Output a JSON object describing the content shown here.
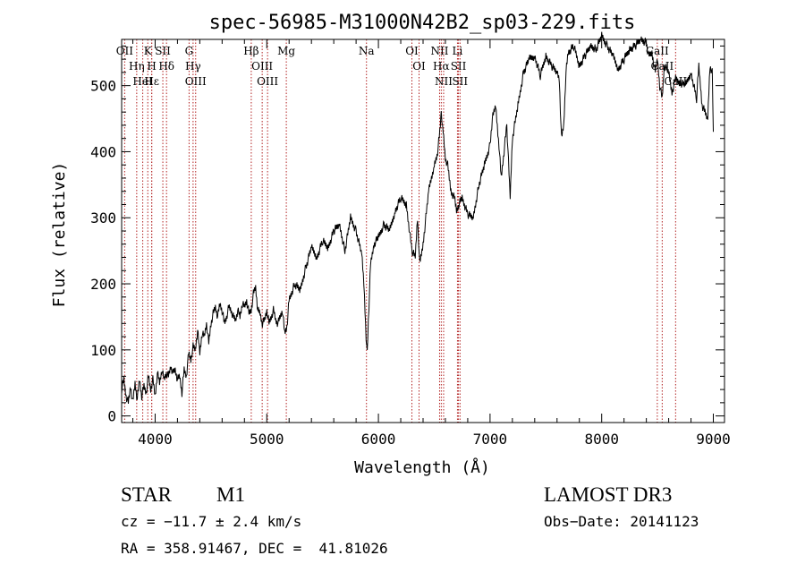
{
  "chart_data": {
    "type": "line",
    "title": "spec-56985-M31000N42B2_sp03-229.fits",
    "xlabel": "Wavelength (Å)",
    "ylabel": "Flux (relative)",
    "xlim": [
      3700,
      9100
    ],
    "ylim": [
      -10,
      570
    ],
    "xticks": [
      4000,
      5000,
      6000,
      7000,
      8000,
      9000
    ],
    "yticks": [
      0,
      100,
      200,
      300,
      400,
      500
    ],
    "grid": false,
    "spectrum": {
      "name": "flux",
      "x": [
        3700,
        3720,
        3740,
        3760,
        3780,
        3800,
        3820,
        3840,
        3860,
        3880,
        3900,
        3920,
        3940,
        3960,
        3980,
        4000,
        4020,
        4040,
        4060,
        4080,
        4100,
        4120,
        4140,
        4160,
        4180,
        4200,
        4220,
        4240,
        4260,
        4280,
        4300,
        4320,
        4340,
        4360,
        4380,
        4400,
        4420,
        4440,
        4460,
        4480,
        4500,
        4520,
        4540,
        4560,
        4580,
        4600,
        4620,
        4640,
        4660,
        4680,
        4700,
        4720,
        4740,
        4760,
        4780,
        4800,
        4820,
        4840,
        4860,
        4880,
        4900,
        4920,
        4940,
        4960,
        4980,
        5000,
        5020,
        5040,
        5060,
        5080,
        5100,
        5120,
        5140,
        5160,
        5180,
        5200,
        5250,
        5300,
        5350,
        5400,
        5450,
        5500,
        5550,
        5600,
        5650,
        5700,
        5750,
        5800,
        5850,
        5870,
        5890,
        5900,
        5910,
        5930,
        5960,
        6000,
        6050,
        6100,
        6150,
        6200,
        6250,
        6300,
        6330,
        6350,
        6370,
        6400,
        6450,
        6500,
        6530,
        6550,
        6563,
        6580,
        6600,
        6620,
        6650,
        6680,
        6700,
        6720,
        6750,
        6800,
        6850,
        6900,
        6950,
        7000,
        7020,
        7050,
        7080,
        7100,
        7150,
        7180,
        7200,
        7250,
        7300,
        7350,
        7400,
        7450,
        7500,
        7550,
        7600,
        7620,
        7640,
        7660,
        7680,
        7700,
        7750,
        7800,
        7850,
        7900,
        7950,
        8000,
        8050,
        8100,
        8150,
        8200,
        8250,
        8300,
        8350,
        8400,
        8420,
        8450,
        8480,
        8500,
        8520,
        8542,
        8560,
        8600,
        8630,
        8662,
        8700,
        8750,
        8800,
        8850,
        8870,
        8900,
        8950,
        8970,
        8990,
        9000
      ],
      "y": [
        40,
        55,
        30,
        20,
        45,
        20,
        50,
        25,
        55,
        30,
        45,
        35,
        60,
        40,
        55,
        30,
        65,
        50,
        70,
        55,
        65,
        60,
        75,
        65,
        70,
        55,
        60,
        35,
        70,
        60,
        95,
        85,
        105,
        100,
        130,
        95,
        125,
        120,
        140,
        110,
        140,
        155,
        165,
        150,
        170,
        160,
        140,
        150,
        165,
        160,
        150,
        145,
        160,
        150,
        170,
        165,
        175,
        155,
        160,
        185,
        195,
        160,
        155,
        140,
        145,
        160,
        140,
        150,
        160,
        145,
        140,
        150,
        160,
        125,
        135,
        175,
        200,
        190,
        225,
        255,
        240,
        265,
        255,
        280,
        290,
        250,
        300,
        280,
        245,
        200,
        120,
        95,
        145,
        230,
        260,
        270,
        290,
        280,
        310,
        330,
        320,
        250,
        240,
        300,
        230,
        260,
        340,
        380,
        400,
        430,
        460,
        430,
        390,
        380,
        340,
        330,
        310,
        320,
        330,
        305,
        300,
        350,
        380,
        410,
        450,
        470,
        410,
        360,
        440,
        330,
        420,
        470,
        520,
        540,
        545,
        515,
        545,
        530,
        520,
        510,
        420,
        440,
        520,
        550,
        560,
        530,
        545,
        560,
        555,
        575,
        560,
        545,
        525,
        540,
        555,
        560,
        570,
        565,
        545,
        550,
        520,
        540,
        500,
        480,
        530,
        520,
        490,
        510,
        505,
        500,
        520,
        480,
        530,
        470,
        450,
        530,
        520,
        430
      ],
      "color": "#000000"
    },
    "lines": [
      {
        "label": "Hδ",
        "x": 4102
      },
      {
        "label": "K",
        "x": 3934
      },
      {
        "label": "H",
        "x": 3969
      },
      {
        "label": "HeI",
        "x": 3889
      },
      {
        "label": "SII",
        "x": 4069
      },
      {
        "label": "OII",
        "x": 3727
      },
      {
        "label": "Hε",
        "x": 3970
      },
      {
        "label": "Hη",
        "x": 3835
      },
      {
        "label": "OIII",
        "x": 4363
      },
      {
        "label": "Hγ",
        "x": 4340
      },
      {
        "label": "G",
        "x": 4304
      },
      {
        "label": "OIII",
        "x": 5007
      },
      {
        "label": "OIII",
        "x": 4959
      },
      {
        "label": "Hβ",
        "x": 4861
      },
      {
        "label": "Mg",
        "x": 5175
      },
      {
        "label": "Na",
        "x": 5893
      },
      {
        "label": "OI",
        "x": 6300
      },
      {
        "label": "OI",
        "x": 6364
      },
      {
        "label": "Hα",
        "x": 6563
      },
      {
        "label": "NII",
        "x": 6548
      },
      {
        "label": "NII",
        "x": 6584
      },
      {
        "label": "SII",
        "x": 6717
      },
      {
        "label": "Li",
        "x": 6708
      },
      {
        "label": "SII",
        "x": 6731
      },
      {
        "label": "CaII",
        "x": 8498
      },
      {
        "label": "CaII",
        "x": 8542
      },
      {
        "label": "CaII",
        "x": 8662
      }
    ],
    "line_colors": {
      "marker": "#b22222",
      "axis": "#000000"
    }
  },
  "info": {
    "object_class": "STAR",
    "subclass": "M1",
    "survey": "LAMOST DR3",
    "cz": "cz = −11.7 ± 2.4 km/s",
    "obs_date": "Obs−Date: 20141123",
    "coords": "RA = 358.91467, DEC =  41.81026"
  }
}
